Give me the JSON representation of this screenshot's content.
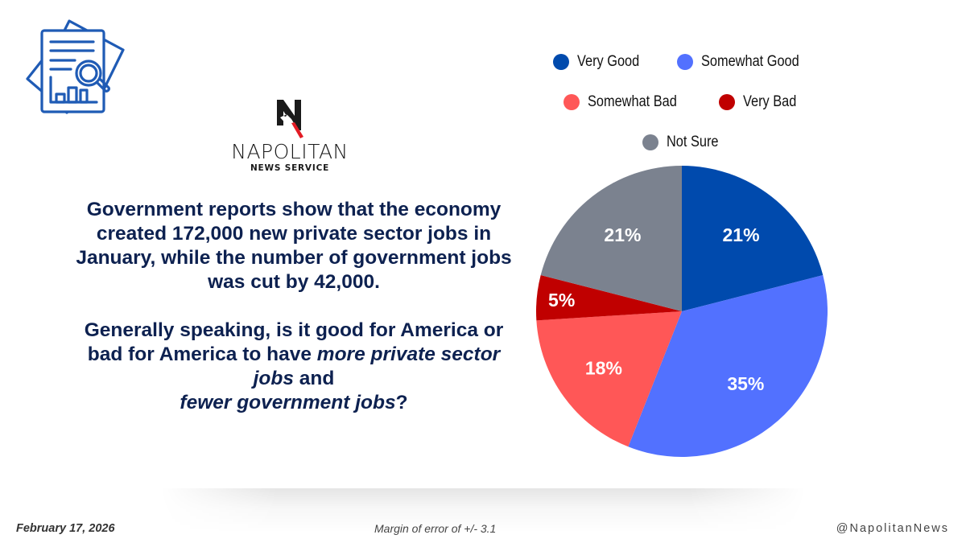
{
  "brand": {
    "name": "NAPOLITAN",
    "subtitle": "NEWS SERVICE",
    "icon": "report-magnifier-icon",
    "icon_color": "#1f5bb5"
  },
  "question": {
    "context": "Government reports show that the economy created 172,000 new private sector jobs in January, while the number of government jobs was cut by 42,000.",
    "q_part1": "Generally speaking, is it good for America or bad for America to have ",
    "q_emph1": "more private sector jobs",
    "q_part2": " and ",
    "q_emph2": "fewer government jobs",
    "q_end": "?",
    "color": "#0d2150"
  },
  "chart_data": {
    "type": "pie",
    "title": "",
    "start_angle_deg": 0,
    "direction": "clockwise",
    "legend_position": "top",
    "series": [
      {
        "name": "Very Good",
        "value": 21,
        "label": "21%",
        "color": "#004aad"
      },
      {
        "name": "Somewhat Good",
        "value": 35,
        "label": "35%",
        "color": "#5271ff"
      },
      {
        "name": "Somewhat Bad",
        "value": 18,
        "label": "18%",
        "color": "#ff5757"
      },
      {
        "name": "Very Bad",
        "value": 5,
        "label": "5%",
        "color": "#c00000"
      },
      {
        "name": "Not Sure",
        "value": 21,
        "label": "21%",
        "color": "#7b828f"
      }
    ],
    "legend_rows": [
      [
        0,
        1
      ],
      [
        2,
        3
      ],
      [
        4
      ]
    ]
  },
  "footer": {
    "date": "February 17, 2026",
    "margin_of_error": "Margin of error of +/- 3.1",
    "handle": "@NapolitanNews"
  }
}
